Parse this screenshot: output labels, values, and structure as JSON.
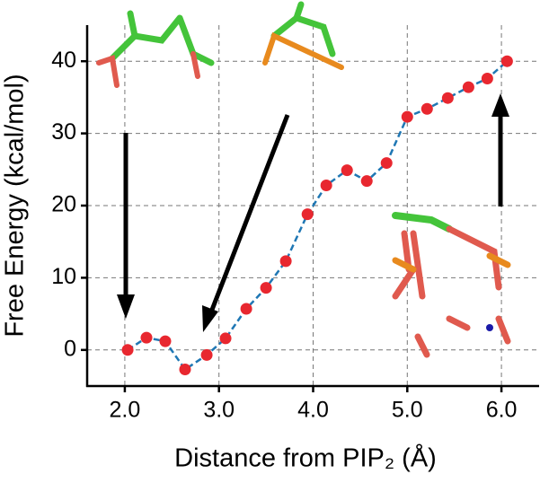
{
  "chart_data": {
    "type": "line",
    "x_label": "Distance from PIP₂ (Å)",
    "y_label": "Free Energy (kcal/mol)",
    "x": [
      2.03,
      2.23,
      2.43,
      2.64,
      2.87,
      3.07,
      3.29,
      3.5,
      3.71,
      3.94,
      4.14,
      4.36,
      4.57,
      4.78,
      5.0,
      5.21,
      5.43,
      5.65,
      5.85,
      6.06
    ],
    "series": [
      {
        "color": "#1f77b4",
        "marker_color": "#e8272f",
        "values": [
          0,
          1.7,
          1.2,
          -2.7,
          -0.7,
          1.6,
          5.7,
          8.6,
          12.3,
          18.8,
          22.8,
          24.9,
          23.4,
          25.9,
          32.3,
          33.4,
          34.9,
          36.4,
          37.6,
          40
        ]
      }
    ],
    "xlim": [
      1.6,
      6.4
    ],
    "ylim": [
      -5,
      45
    ],
    "xticks": [
      {
        "value": 2,
        "label": "2.0"
      },
      {
        "value": 3,
        "label": "3.0"
      },
      {
        "value": 4,
        "label": "4.0"
      },
      {
        "value": 5,
        "label": "5.0"
      },
      {
        "value": 6,
        "label": "6.0"
      }
    ],
    "yticks": [
      0,
      10,
      20,
      30,
      40
    ],
    "grid": true
  }
}
